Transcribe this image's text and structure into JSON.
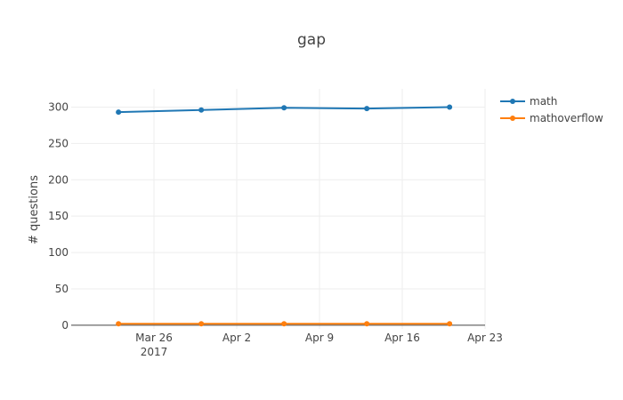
{
  "chart_data": {
    "type": "line",
    "title": "gap",
    "xlabel": "",
    "ylabel": "# questions",
    "x": [
      "2017-03-23",
      "2017-03-30",
      "2017-04-06",
      "2017-04-13",
      "2017-04-20"
    ],
    "series": [
      {
        "name": "math",
        "values": [
          293,
          296,
          299,
          298,
          300
        ],
        "color": "#1f77b4"
      },
      {
        "name": "mathoverflow",
        "values": [
          2,
          2,
          2,
          2,
          2
        ],
        "color": "#ff7f0e"
      }
    ],
    "ylim": [
      -5,
      325
    ],
    "xlim": [
      "2017-03-19",
      "2017-04-23"
    ],
    "y_ticks": [
      0,
      50,
      100,
      150,
      200,
      250,
      300
    ],
    "x_ticks": [
      {
        "date": "2017-03-26",
        "label": "Mar 26",
        "sublabel": "2017"
      },
      {
        "date": "2017-04-02",
        "label": "Apr 2",
        "sublabel": ""
      },
      {
        "date": "2017-04-09",
        "label": "Apr 9",
        "sublabel": ""
      },
      {
        "date": "2017-04-16",
        "label": "Apr 16",
        "sublabel": ""
      },
      {
        "date": "2017-04-23",
        "label": "Apr 23",
        "sublabel": ""
      }
    ],
    "grid": true,
    "legend_position": "top-right"
  }
}
